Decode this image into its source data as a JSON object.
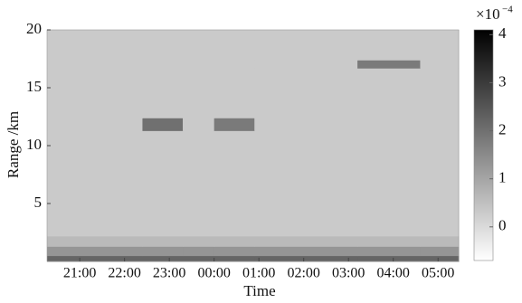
{
  "chart_data": {
    "type": "heatmap",
    "x_label": "Time",
    "y_label": "Range /km",
    "xlim": [
      20.27,
      29.46
    ],
    "xticks": [
      {
        "value": 21,
        "label": "21:00"
      },
      {
        "value": 22,
        "label": "22:00"
      },
      {
        "value": 23,
        "label": "23:00"
      },
      {
        "value": 24,
        "label": "00:00"
      },
      {
        "value": 25,
        "label": "01:00"
      },
      {
        "value": 26,
        "label": "02:00"
      },
      {
        "value": 27,
        "label": "03:00"
      },
      {
        "value": 28,
        "label": "04:00"
      },
      {
        "value": 29,
        "label": "05:00"
      }
    ],
    "ylim": [
      0,
      20
    ],
    "yticks": [
      5,
      10,
      15,
      20
    ],
    "x": [
      20.27,
      22.4,
      23.3,
      24.0,
      24.9,
      27.2,
      28.6,
      29.46
    ],
    "y": [
      0,
      0.5,
      1.3,
      2.2,
      11.3,
      12.4,
      16.7,
      17.4,
      20
    ],
    "z": [
      [
        2.2,
        2.2,
        2.2,
        2.2,
        2.2,
        2.2,
        2.2
      ],
      [
        1.3,
        1.3,
        1.3,
        1.3,
        1.3,
        1.3,
        1.3
      ],
      [
        0.6,
        0.6,
        0.6,
        0.6,
        0.6,
        0.6,
        0.6
      ],
      [
        0.3,
        0.3,
        0.3,
        0.3,
        0.3,
        0.3,
        0.3
      ],
      [
        0.3,
        2.0,
        0.3,
        1.8,
        0.3,
        0.3,
        0.3
      ],
      [
        0.3,
        0.3,
        0.3,
        0.3,
        0.3,
        0.3,
        0.3
      ],
      [
        0.3,
        0.3,
        0.3,
        0.3,
        0.3,
        1.8,
        0.3
      ],
      [
        0.3,
        0.3,
        0.3,
        0.3,
        0.3,
        0.3,
        0.3
      ]
    ],
    "clim": [
      -0.7,
      4.1
    ],
    "cticks": [
      0,
      1,
      2,
      3,
      4
    ],
    "colorbar_multiplier": "×10",
    "colorbar_exponent": "−4",
    "colormap": "gray_r"
  }
}
